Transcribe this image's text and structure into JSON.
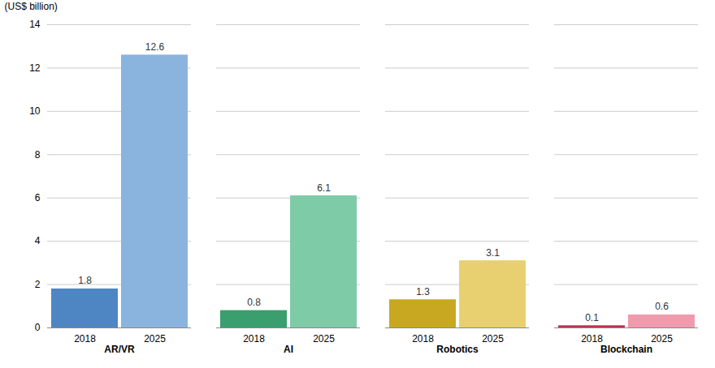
{
  "chart_data": {
    "type": "bar",
    "categories": [
      "AR/VR",
      "AI",
      "Robotics",
      "Blockchain"
    ],
    "series": [
      {
        "name": "2018",
        "values": [
          1.8,
          0.8,
          1.3,
          0.1
        ],
        "colors": [
          "#4e86c4",
          "#3a9e6e",
          "#c8a820",
          "#c03050"
        ]
      },
      {
        "name": "2025",
        "values": [
          12.6,
          6.1,
          3.1,
          0.6
        ],
        "colors": [
          "#8ab4de",
          "#7ecba8",
          "#e8d070",
          "#f09aae"
        ]
      }
    ],
    "ylabel": "(US$ billion)",
    "ylim": [
      0,
      14
    ],
    "yticks": [
      0,
      2,
      4,
      6,
      8,
      10,
      12,
      14
    ],
    "grid": true,
    "data_labels": true
  }
}
